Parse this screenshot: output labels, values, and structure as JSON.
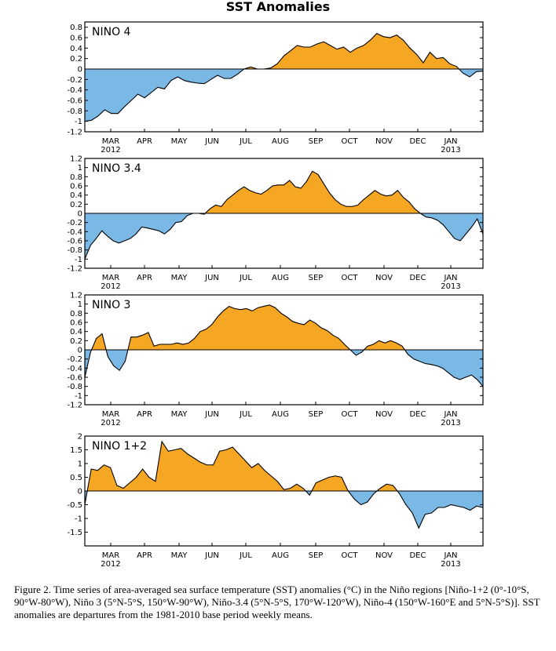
{
  "title": "SST Anomalies",
  "caption": "Figure 2. Time series of area-averaged sea surface temperature (SST) anomalies (°C) in the Niño regions [Niño-1+2 (0°-10°S, 90°W-80°W), Niño 3 (5°N-5°S, 150°W-90°W), Niño-3.4 (5°N-5°S, 170°W-120°W), Niño-4 (150°W-160°E and 5°N-5°S)].  SST anomalies are departures from the 1981-2010 base period weekly means.",
  "colors": {
    "positive": "#f5a623",
    "negative": "#7ab8e6",
    "line": "#000000"
  },
  "chart_data": [
    {
      "type": "area",
      "title": "NINO 4",
      "x_unit": "week",
      "months": [
        "MAR",
        "APR",
        "MAY",
        "JUN",
        "JUL",
        "AUG",
        "SEP",
        "OCT",
        "NOV",
        "DEC",
        "JAN"
      ],
      "year_labels": [
        {
          "month": "MAR",
          "text": "2012"
        },
        {
          "month": "JAN",
          "text": "2013"
        }
      ],
      "ylim": [
        -1.2,
        0.9
      ],
      "yticks": [
        -1.2,
        -1,
        -0.8,
        -0.6,
        -0.4,
        -0.2,
        0,
        0.2,
        0.4,
        0.6,
        0.8
      ],
      "ytick_labels": [
        "-1.2",
        "-1",
        "-0.8",
        "-0.6",
        "-0.4",
        "-0.2",
        "0",
        "0.2",
        "0.4",
        "0.6",
        "0.8"
      ],
      "values": [
        -1.0,
        -0.98,
        -0.9,
        -0.78,
        -0.85,
        -0.85,
        -0.72,
        -0.6,
        -0.48,
        -0.55,
        -0.45,
        -0.35,
        -0.38,
        -0.22,
        -0.15,
        -0.22,
        -0.25,
        -0.27,
        -0.28,
        -0.2,
        -0.12,
        -0.18,
        -0.18,
        -0.1,
        0.0,
        0.04,
        0.0,
        0.0,
        0.02,
        0.1,
        0.25,
        0.35,
        0.45,
        0.42,
        0.42,
        0.48,
        0.52,
        0.45,
        0.38,
        0.42,
        0.32,
        0.4,
        0.45,
        0.55,
        0.68,
        0.62,
        0.6,
        0.65,
        0.55,
        0.4,
        0.28,
        0.12,
        0.32,
        0.2,
        0.22,
        0.1,
        0.05,
        -0.08,
        -0.15,
        -0.05,
        -0.04
      ]
    },
    {
      "type": "area",
      "title": "NINO 3.4",
      "x_unit": "week",
      "months": [
        "MAR",
        "APR",
        "MAY",
        "JUN",
        "JUL",
        "AUG",
        "SEP",
        "OCT",
        "NOV",
        "DEC",
        "JAN"
      ],
      "year_labels": [
        {
          "month": "MAR",
          "text": "2012"
        },
        {
          "month": "JAN",
          "text": "2013"
        }
      ],
      "ylim": [
        -1.2,
        1.2
      ],
      "yticks": [
        -1.2,
        -1,
        -0.8,
        -0.6,
        -0.4,
        -0.2,
        0,
        0.2,
        0.4,
        0.6,
        0.8,
        1,
        1.2
      ],
      "ytick_labels": [
        "-1.2",
        "-1",
        "-0.8",
        "-0.6",
        "-0.4",
        "-0.2",
        "0",
        "0.2",
        "0.4",
        "0.6",
        "0.8",
        "1",
        "1.2"
      ],
      "values": [
        -1.0,
        -0.7,
        -0.55,
        -0.38,
        -0.5,
        -0.6,
        -0.65,
        -0.6,
        -0.55,
        -0.45,
        -0.3,
        -0.32,
        -0.35,
        -0.38,
        -0.45,
        -0.35,
        -0.2,
        -0.18,
        -0.05,
        0.0,
        0.0,
        -0.02,
        0.1,
        0.18,
        0.15,
        0.3,
        0.4,
        0.5,
        0.58,
        0.5,
        0.45,
        0.42,
        0.5,
        0.6,
        0.62,
        0.62,
        0.72,
        0.58,
        0.55,
        0.7,
        0.92,
        0.85,
        0.65,
        0.45,
        0.3,
        0.2,
        0.15,
        0.15,
        0.18,
        0.3,
        0.4,
        0.5,
        0.42,
        0.38,
        0.4,
        0.5,
        0.35,
        0.25,
        0.1,
        0.0,
        -0.08,
        -0.1,
        -0.15,
        -0.25,
        -0.4,
        -0.55,
        -0.6,
        -0.45,
        -0.3,
        -0.12,
        -0.45
      ]
    },
    {
      "type": "area",
      "title": "NINO 3",
      "x_unit": "week",
      "months": [
        "MAR",
        "APR",
        "MAY",
        "JUN",
        "JUL",
        "AUG",
        "SEP",
        "OCT",
        "NOV",
        "DEC",
        "JAN"
      ],
      "year_labels": [
        {
          "month": "MAR",
          "text": "2012"
        },
        {
          "month": "JAN",
          "text": "2013"
        }
      ],
      "ylim": [
        -1.2,
        1.2
      ],
      "yticks": [
        -1.2,
        -1,
        -0.8,
        -0.6,
        -0.4,
        -0.2,
        0,
        0.2,
        0.4,
        0.6,
        0.8,
        1,
        1.2
      ],
      "ytick_labels": [
        "-1.2",
        "-1",
        "-0.8",
        "-0.6",
        "-0.4",
        "-0.2",
        "0",
        "0.2",
        "0.4",
        "0.6",
        "0.8",
        "1",
        "1.2"
      ],
      "values": [
        -0.6,
        -0.05,
        0.25,
        0.35,
        -0.15,
        -0.35,
        -0.45,
        -0.25,
        0.28,
        0.28,
        0.32,
        0.38,
        0.08,
        0.12,
        0.12,
        0.12,
        0.15,
        0.12,
        0.15,
        0.25,
        0.4,
        0.45,
        0.55,
        0.72,
        0.85,
        0.95,
        0.9,
        0.88,
        0.9,
        0.85,
        0.92,
        0.95,
        0.98,
        0.92,
        0.8,
        0.72,
        0.62,
        0.58,
        0.55,
        0.65,
        0.58,
        0.48,
        0.42,
        0.32,
        0.25,
        0.12,
        0.0,
        -0.12,
        -0.05,
        0.08,
        0.12,
        0.2,
        0.15,
        0.2,
        0.15,
        0.08,
        -0.1,
        -0.2,
        -0.25,
        -0.3,
        -0.32,
        -0.35,
        -0.4,
        -0.5,
        -0.6,
        -0.65,
        -0.6,
        -0.55,
        -0.65,
        -0.8
      ]
    },
    {
      "type": "area",
      "title": "NINO 1+2",
      "x_unit": "week",
      "months": [
        "MAR",
        "APR",
        "MAY",
        "JUN",
        "JUL",
        "AUG",
        "SEP",
        "OCT",
        "NOV",
        "DEC",
        "JAN"
      ],
      "year_labels": [
        {
          "month": "MAR",
          "text": "2012"
        },
        {
          "month": "JAN",
          "text": "2013"
        }
      ],
      "ylim": [
        -2,
        2
      ],
      "yticks": [
        -1.5,
        -1,
        -0.5,
        0,
        0.5,
        1,
        1.5,
        2
      ],
      "ytick_labels": [
        "-1.5",
        "-1",
        "-0.5",
        "0",
        "0.5",
        "1",
        "1.5",
        "2"
      ],
      "values": [
        -0.5,
        0.8,
        0.75,
        0.95,
        0.85,
        0.2,
        0.1,
        0.3,
        0.5,
        0.8,
        0.5,
        0.35,
        1.8,
        1.45,
        1.5,
        1.55,
        1.35,
        1.2,
        1.05,
        0.95,
        0.95,
        1.45,
        1.5,
        1.6,
        1.35,
        1.1,
        0.85,
        1.0,
        0.75,
        0.55,
        0.35,
        0.05,
        0.1,
        0.25,
        0.1,
        -0.15,
        0.3,
        0.4,
        0.5,
        0.55,
        0.5,
        0.0,
        -0.3,
        -0.5,
        -0.4,
        -0.1,
        0.1,
        0.25,
        0.2,
        -0.1,
        -0.5,
        -0.8,
        -1.35,
        -0.85,
        -0.8,
        -0.6,
        -0.6,
        -0.5,
        -0.55,
        -0.6,
        -0.7,
        -0.55,
        -0.6
      ]
    }
  ]
}
